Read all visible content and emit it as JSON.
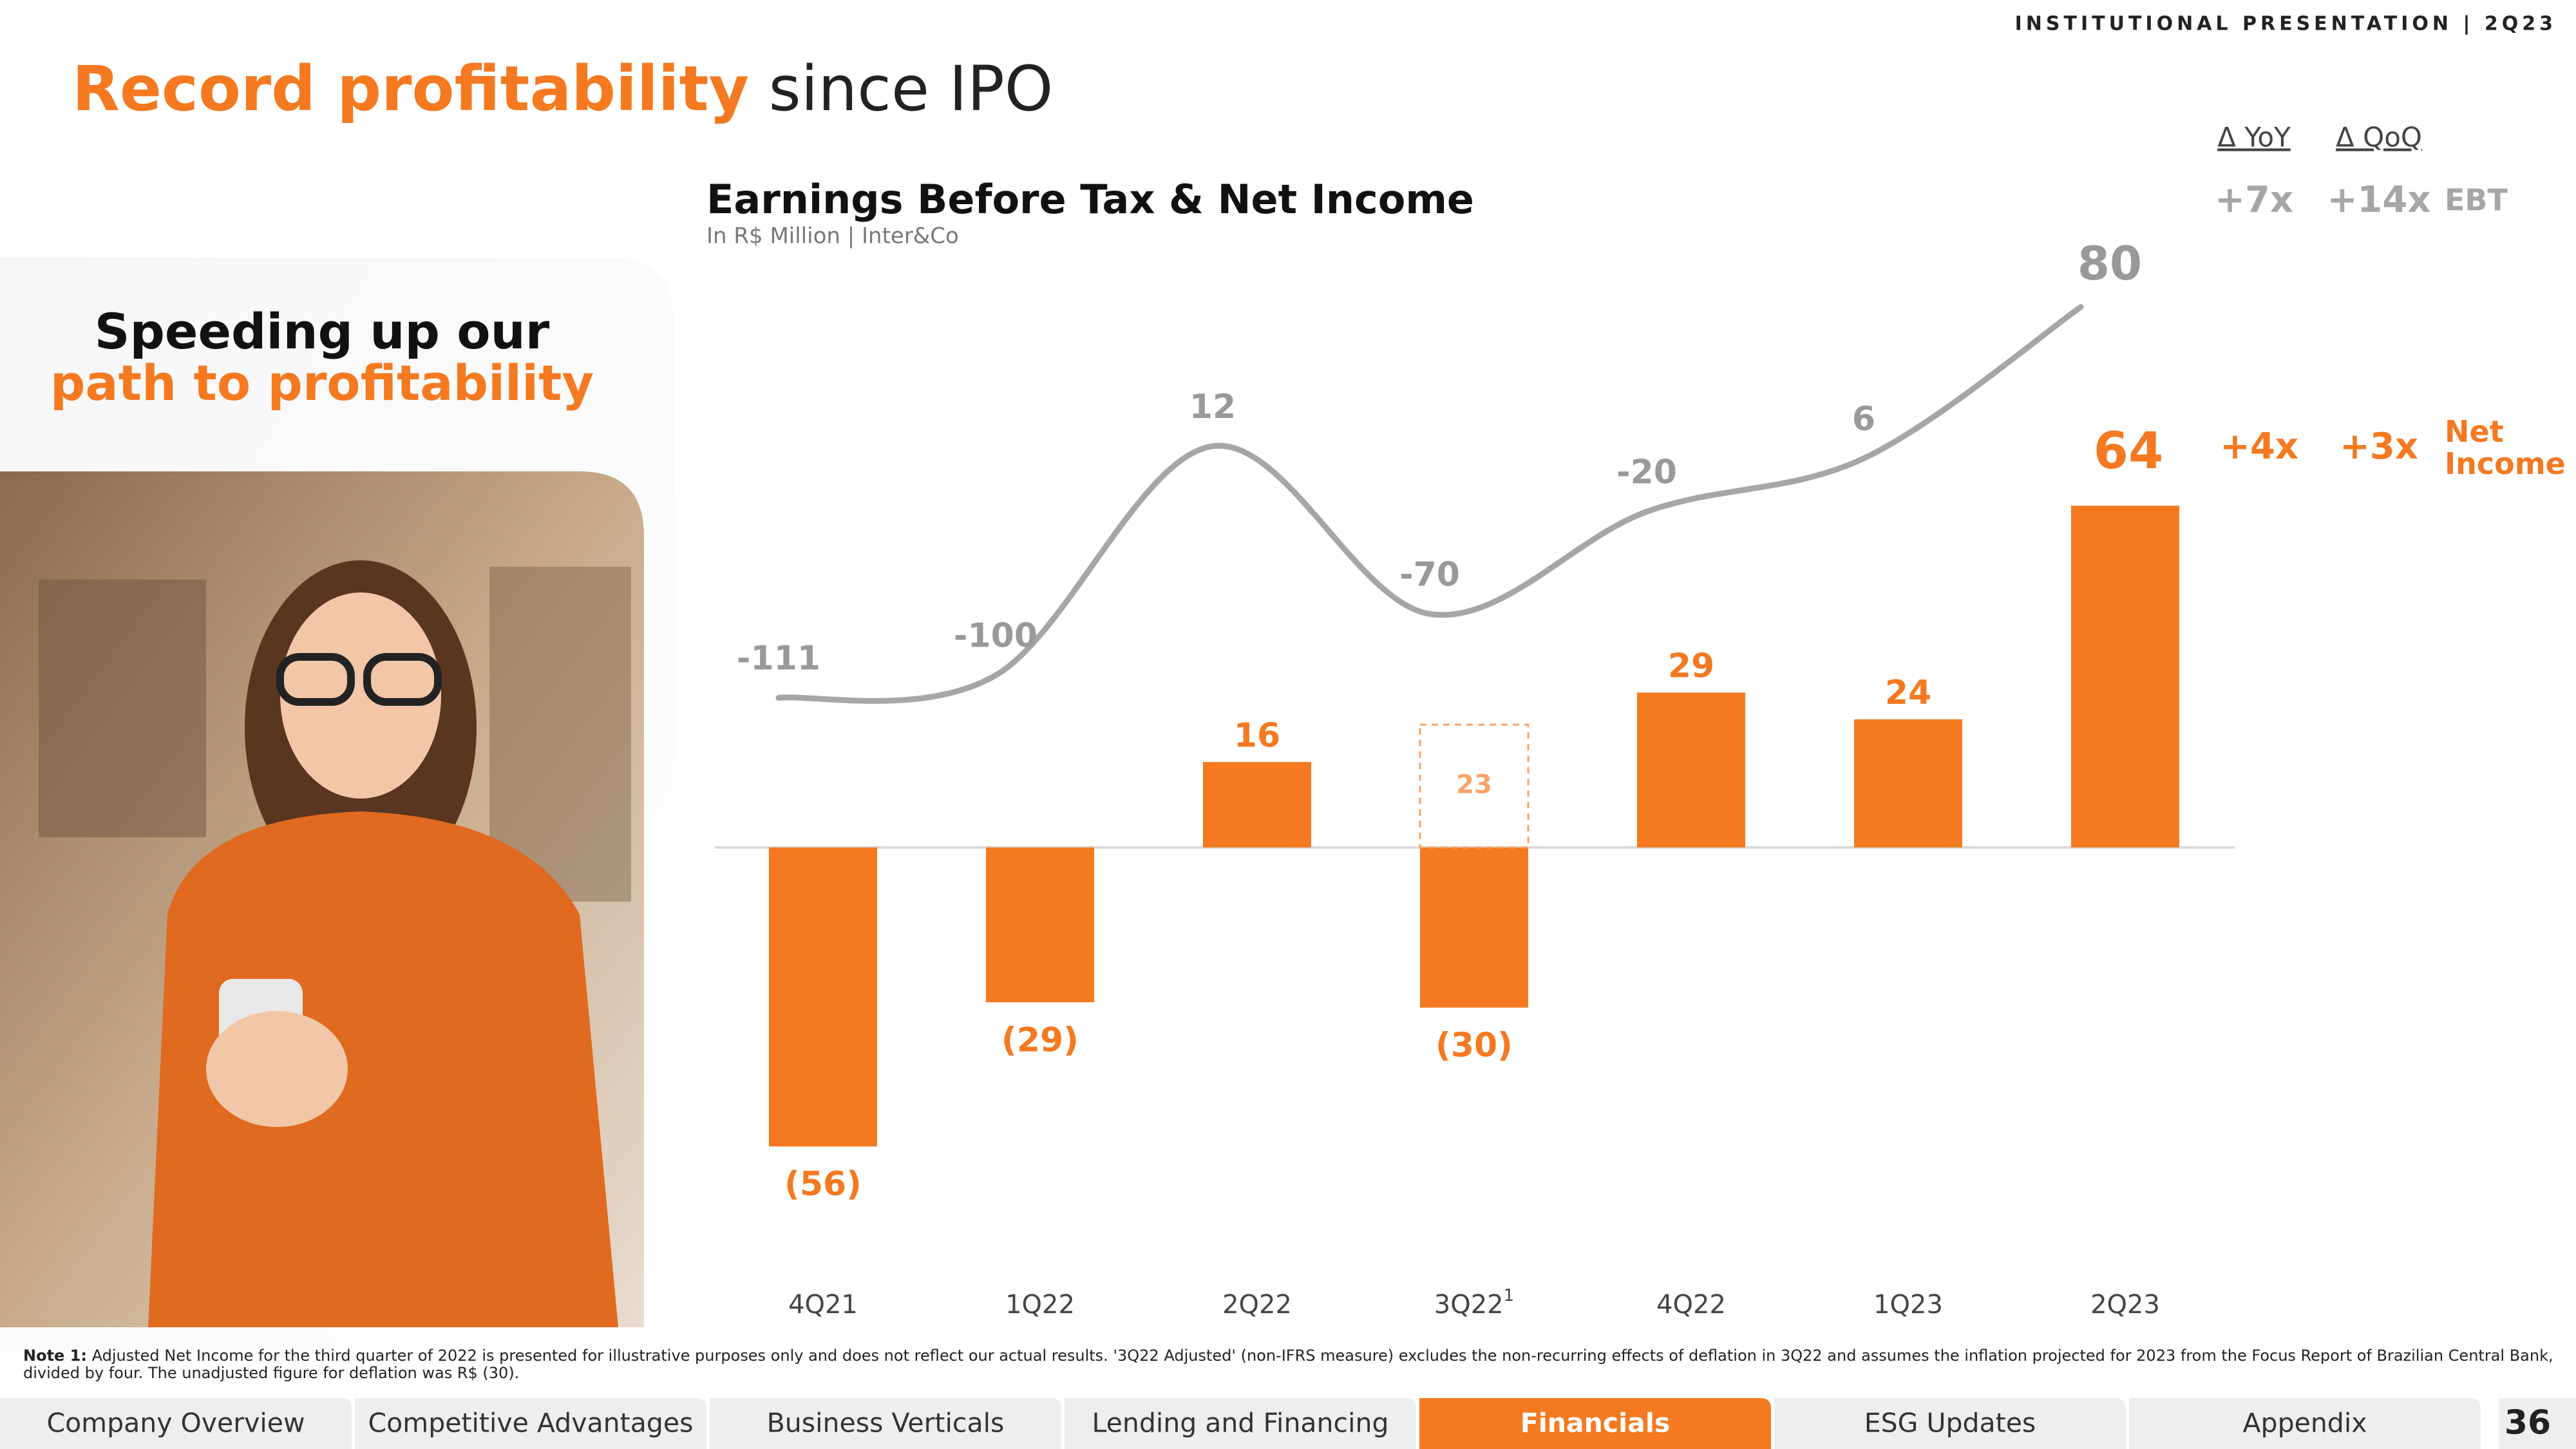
{
  "header": {
    "top_right": "INSTITUTIONAL PRESENTATION | 2Q23",
    "title_highlight": "Record profitability",
    "title_rest": "since IPO"
  },
  "side_panel": {
    "line1": "Speeding up our",
    "line2": "path to profitability"
  },
  "chart_data": {
    "type": "bar",
    "title": "Earnings Before Tax & Net Income",
    "subtitle": "In R$ Million | Inter&Co",
    "categories": [
      "4Q21",
      "1Q22",
      "2Q22",
      "3Q22",
      "4Q22",
      "1Q23",
      "2Q23"
    ],
    "category_notes": [
      null,
      null,
      null,
      "1",
      null,
      null,
      null
    ],
    "series": [
      {
        "name": "Net Income",
        "color": "#f47920",
        "values": [
          -56,
          -29,
          16,
          -30,
          29,
          24,
          64
        ],
        "value_labels": [
          "(56)",
          "(29)",
          "16",
          "(30)",
          "29",
          "24",
          "64"
        ]
      },
      {
        "name": "EBT",
        "color": "#a6a6a6",
        "axis": "y2",
        "style": "line",
        "values": [
          -111,
          -100,
          12,
          -70,
          -20,
          6,
          80
        ]
      },
      {
        "color": "#f7a46a",
        "style": "dashed",
        "values": [
          null,
          null,
          null,
          23,
          null,
          null,
          null
        ]
      }
    ],
    "ylim": [
      -100,
      120
    ],
    "y2lim": [
      -445,
      129
    ],
    "grid": false
  },
  "growth": {
    "headers": [
      "Δ YoY",
      "Δ QoQ"
    ],
    "rows": [
      [
        "+7x",
        "+14x"
      ],
      [
        "+4x",
        "+3x"
      ]
    ]
  },
  "note": {
    "label": "Note 1:",
    "text": "Adjusted Net Income for the third quarter of 2022 is presented for illustrative purposes only and does not reflect our actual results. '3Q22 Adjusted' (non-IFRS measure) excludes the non-recurring effects of deflation in 3Q22 and assumes the inflation projected for 2023 from the Focus Report of Brazilian Central Bank, divided by four. The unadjusted figure for deflation was R$ (30)."
  },
  "nav": {
    "tabs": [
      "Company Overview",
      "Competitive Advantages",
      "Business Verticals",
      "Lending and Financing",
      "Financials",
      "ESG Updates",
      "Appendix"
    ],
    "active": 4,
    "page": "36"
  }
}
